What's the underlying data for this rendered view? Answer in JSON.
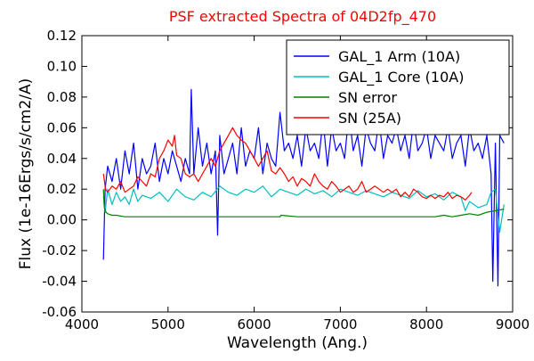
{
  "chart_data": {
    "type": "line",
    "title": "PSF extracted Spectra of 04D2fp_470",
    "xlabel": "Wavelength (Ang.)",
    "ylabel": "Flux (1e-16Ergs/s/cm2/A)",
    "xlim": [
      4000,
      9000
    ],
    "ylim": [
      -0.06,
      0.12
    ],
    "x_ticks": [
      4000,
      5000,
      6000,
      7000,
      8000,
      9000
    ],
    "x_tick_labels": [
      "4000",
      "5000",
      "6000",
      "7000",
      "8000",
      "9000"
    ],
    "y_ticks": [
      -0.06,
      -0.04,
      -0.02,
      0.0,
      0.02,
      0.04,
      0.06,
      0.08,
      0.1,
      0.12
    ],
    "y_tick_labels": [
      "-0.06",
      "-0.04",
      "-0.02",
      "0.00",
      "0.02",
      "0.04",
      "0.06",
      "0.08",
      "0.10",
      "0.12"
    ],
    "grid": false,
    "legend_position": "top-right",
    "series": [
      {
        "name": "GAL_1 Arm (10A)",
        "color": "#0000ff",
        "x": [
          4250,
          4270,
          4300,
          4350,
          4400,
          4450,
          4500,
          4550,
          4600,
          4650,
          4700,
          4750,
          4800,
          4850,
          4900,
          4950,
          5000,
          5050,
          5100,
          5150,
          5200,
          5250,
          5270,
          5300,
          5350,
          5400,
          5450,
          5500,
          5550,
          5575,
          5600,
          5650,
          5700,
          5750,
          5800,
          5850,
          5900,
          5950,
          6000,
          6050,
          6100,
          6150,
          6200,
          6250,
          6300,
          6350,
          6400,
          6450,
          6500,
          6550,
          6600,
          6650,
          6700,
          6750,
          6800,
          6850,
          6900,
          6950,
          7000,
          7050,
          7100,
          7150,
          7200,
          7250,
          7300,
          7350,
          7400,
          7450,
          7500,
          7550,
          7600,
          7650,
          7700,
          7750,
          7800,
          7850,
          7900,
          7950,
          8000,
          8050,
          8100,
          8150,
          8200,
          8250,
          8300,
          8350,
          8400,
          8450,
          8500,
          8550,
          8600,
          8650,
          8700,
          8750,
          8770,
          8800,
          8830,
          8850,
          8900
        ],
        "values": [
          -0.026,
          0.02,
          0.035,
          0.025,
          0.04,
          0.02,
          0.045,
          0.03,
          0.05,
          0.02,
          0.04,
          0.03,
          0.035,
          0.05,
          0.025,
          0.04,
          0.03,
          0.045,
          0.035,
          0.025,
          0.04,
          0.03,
          0.085,
          0.03,
          0.06,
          0.035,
          0.05,
          0.03,
          0.045,
          -0.01,
          0.055,
          0.03,
          0.04,
          0.05,
          0.03,
          0.06,
          0.035,
          0.045,
          0.04,
          0.06,
          0.03,
          0.05,
          0.04,
          0.035,
          0.07,
          0.045,
          0.05,
          0.04,
          0.055,
          0.035,
          0.06,
          0.045,
          0.05,
          0.04,
          0.065,
          0.035,
          0.06,
          0.045,
          0.05,
          0.04,
          0.07,
          0.045,
          0.055,
          0.035,
          0.06,
          0.05,
          0.045,
          0.065,
          0.04,
          0.055,
          0.05,
          0.06,
          0.045,
          0.055,
          0.04,
          0.065,
          0.045,
          0.05,
          0.06,
          0.04,
          0.055,
          0.05,
          0.045,
          0.06,
          0.04,
          0.05,
          0.055,
          0.035,
          0.06,
          0.045,
          0.05,
          0.04,
          0.055,
          0.03,
          -0.04,
          0.05,
          -0.043,
          0.055,
          0.05
        ]
      },
      {
        "name": "GAL_1 Core (10A)",
        "color": "#00bfbf",
        "x": [
          4250,
          4270,
          4300,
          4350,
          4400,
          4450,
          4500,
          4550,
          4600,
          4650,
          4700,
          4800,
          4900,
          5000,
          5100,
          5200,
          5300,
          5400,
          5500,
          5600,
          5700,
          5800,
          5900,
          6000,
          6100,
          6200,
          6300,
          6400,
          6500,
          6600,
          6700,
          6800,
          6900,
          7000,
          7100,
          7200,
          7300,
          7400,
          7500,
          7600,
          7700,
          7800,
          7900,
          8000,
          8100,
          8200,
          8300,
          8400,
          8450,
          8500,
          8600,
          8700,
          8750,
          8800,
          8850,
          8900
        ],
        "values": [
          0.015,
          0.005,
          0.02,
          0.01,
          0.018,
          0.012,
          0.015,
          0.01,
          0.02,
          0.012,
          0.016,
          0.014,
          0.018,
          0.012,
          0.02,
          0.015,
          0.013,
          0.018,
          0.015,
          0.022,
          0.018,
          0.016,
          0.02,
          0.018,
          0.022,
          0.015,
          0.02,
          0.018,
          0.016,
          0.02,
          0.017,
          0.019,
          0.015,
          0.02,
          0.018,
          0.016,
          0.019,
          0.017,
          0.015,
          0.018,
          0.016,
          0.014,
          0.019,
          0.015,
          0.017,
          0.013,
          0.018,
          0.015,
          0.006,
          0.012,
          0.008,
          0.01,
          0.018,
          0.02,
          -0.008,
          0.01
        ]
      },
      {
        "name": "SN error",
        "color": "#008000",
        "x": [
          4250,
          4260,
          4280,
          4300,
          4350,
          4400,
          4500,
          4600,
          4800,
          5000,
          5500,
          6000,
          6300,
          6310,
          6500,
          7000,
          7500,
          8000,
          8100,
          8200,
          8300,
          8400,
          8500,
          8600,
          8700,
          8800,
          8900
        ],
        "values": [
          0.02,
          0.008,
          0.005,
          0.004,
          0.003,
          0.003,
          0.002,
          0.002,
          0.002,
          0.002,
          0.002,
          0.002,
          0.002,
          0.003,
          0.002,
          0.002,
          0.002,
          0.002,
          0.002,
          0.003,
          0.002,
          0.003,
          0.004,
          0.003,
          0.005,
          0.006,
          0.007
        ]
      },
      {
        "name": "SN (25A)",
        "color": "#ff0000",
        "x": [
          4250,
          4275,
          4300,
          4350,
          4400,
          4450,
          4500,
          4550,
          4600,
          4650,
          4700,
          4750,
          4800,
          4850,
          4900,
          4950,
          5000,
          5050,
          5075,
          5100,
          5150,
          5200,
          5250,
          5300,
          5350,
          5400,
          5450,
          5500,
          5550,
          5600,
          5650,
          5700,
          5750,
          5800,
          5850,
          5900,
          5950,
          6000,
          6050,
          6100,
          6150,
          6200,
          6250,
          6300,
          6350,
          6400,
          6450,
          6500,
          6550,
          6600,
          6650,
          6700,
          6750,
          6800,
          6850,
          6900,
          6950,
          7000,
          7050,
          7100,
          7150,
          7200,
          7250,
          7300,
          7350,
          7400,
          7450,
          7500,
          7550,
          7600,
          7650,
          7700,
          7750,
          7800,
          7850,
          7900,
          7950,
          8000,
          8050,
          8100,
          8150,
          8200,
          8250,
          8300,
          8350,
          8400,
          8450,
          8500,
          8525
        ],
        "values": [
          0.03,
          0.02,
          0.018,
          0.022,
          0.02,
          0.025,
          0.018,
          0.02,
          0.022,
          0.028,
          0.025,
          0.022,
          0.03,
          0.028,
          0.04,
          0.045,
          0.052,
          0.048,
          0.055,
          0.042,
          0.04,
          0.03,
          0.028,
          0.03,
          0.025,
          0.03,
          0.035,
          0.04,
          0.035,
          0.045,
          0.05,
          0.055,
          0.06,
          0.055,
          0.052,
          0.05,
          0.045,
          0.04,
          0.035,
          0.04,
          0.045,
          0.032,
          0.03,
          0.034,
          0.03,
          0.025,
          0.028,
          0.022,
          0.027,
          0.025,
          0.022,
          0.03,
          0.025,
          0.022,
          0.02,
          0.025,
          0.022,
          0.018,
          0.02,
          0.022,
          0.018,
          0.02,
          0.025,
          0.018,
          0.02,
          0.022,
          0.02,
          0.018,
          0.02,
          0.018,
          0.02,
          0.015,
          0.018,
          0.015,
          0.02,
          0.018,
          0.015,
          0.014,
          0.016,
          0.014,
          0.016,
          0.015,
          0.018,
          0.014,
          0.016,
          0.015,
          0.013,
          0.016,
          0.018
        ]
      }
    ]
  }
}
